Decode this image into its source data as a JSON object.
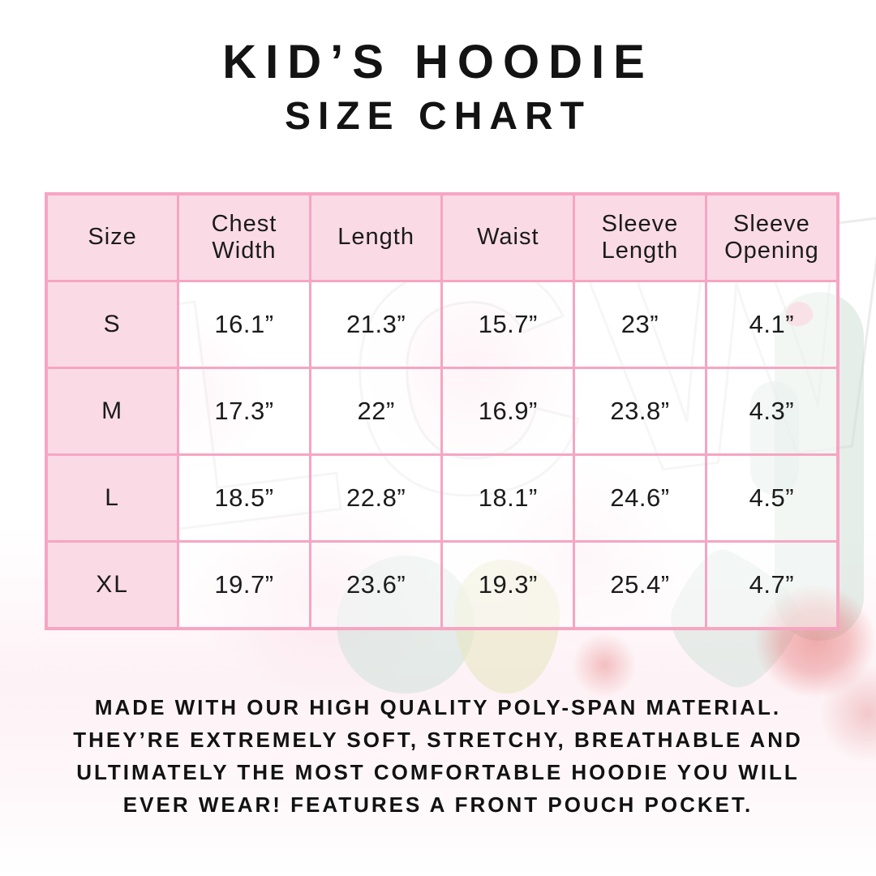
{
  "title": {
    "line1": "KID’S HOODIE",
    "line2": "SIZE CHART"
  },
  "colors": {
    "table_border_pink": "#f6a5c2",
    "header_pink": "#fadbe5",
    "text": "#141414"
  },
  "size_chart": {
    "columns": [
      "Size",
      "Chest\nWidth",
      "Length",
      "Waist",
      "Sleeve\nLength",
      "Sleeve\nOpening"
    ],
    "rows": [
      {
        "label": "S",
        "values": [
          "16.1”",
          "21.3”",
          "15.7”",
          "23”",
          "4.1”"
        ]
      },
      {
        "label": "M",
        "values": [
          "17.3”",
          "22”",
          "16.9”",
          "23.8”",
          "4.3”"
        ]
      },
      {
        "label": "L",
        "values": [
          "18.5”",
          "22.8”",
          "18.1”",
          "24.6”",
          "4.5”"
        ]
      },
      {
        "label": "XL",
        "values": [
          "19.7”",
          "23.6”",
          "19.3”",
          "25.4”",
          "4.7”"
        ]
      }
    ]
  },
  "description": {
    "lines": [
      "MADE WITH OUR HIGH QUALITY POLY-SPAN MATERIAL.",
      "THEY’RE EXTREMELY SOFT, STRETCHY, BREATHABLE AND",
      "ULTIMATELY THE MOST COMFORTABLE HOODIE YOU WILL",
      "EVER WEAR! FEATURES A FRONT POUCH POCKET."
    ]
  },
  "watermark": {
    "letters": "LCW"
  }
}
